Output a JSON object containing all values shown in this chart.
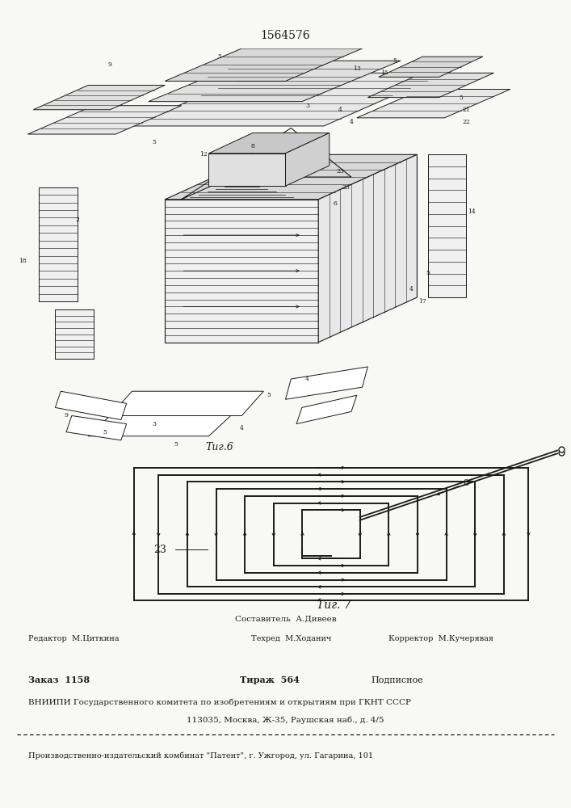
{
  "title_number": "1564576",
  "fig6_label": "Τиг.6",
  "fig7_label": "Τиг. 7",
  "footer_line1": "Составитель  А.Дивеев",
  "footer_editor": "Редактор  М.Циткина",
  "footer_techred": "Техред  М.Ходанич",
  "footer_corrector": "Корректор  М.Кучерявая",
  "footer_order": "Заказ  1158",
  "footer_tirazh": "Тираж  564",
  "footer_podpisnoe": "Подписное",
  "footer_vnipi": "ВНИИПИ Государственного комитета по изобретениям и открытиям при ГКНТ СССР",
  "footer_address": "113035, Москва, Ж-35, Раушская наб., д. 4/5",
  "footer_proizvod": "Производственно-издательский комбинат \"Патент\", г. Ужгород, ул. Гагарина, 101",
  "paper_color": "#f8f8f5",
  "line_color": "#1a1a1a"
}
